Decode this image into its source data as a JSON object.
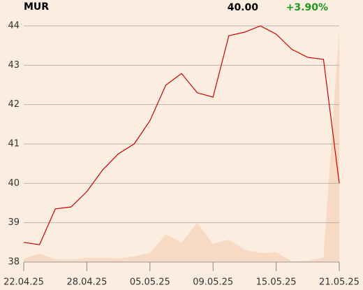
{
  "chart_data": {
    "type": "line",
    "title": "MUR",
    "last": "40.00",
    "change": "+3.90%",
    "change_color": "#1a9a1a",
    "categories": [
      "22.04.25",
      null,
      null,
      null,
      "28.04.25",
      null,
      null,
      null,
      "05.05.25",
      null,
      null,
      null,
      "09.05.25",
      null,
      null,
      null,
      "15.05.25",
      null,
      null,
      null,
      "21.05.25"
    ],
    "series": [
      {
        "color": "#cc0000",
        "values": [
          38.5,
          38.44,
          39.35,
          39.4,
          39.79,
          40.34,
          40.75,
          41.0,
          41.59,
          42.49,
          42.79,
          42.3,
          42.19,
          43.75,
          43.84,
          44.0,
          43.79,
          43.4,
          43.2,
          43.15,
          40.0
        ]
      }
    ],
    "volume": {
      "color": "#f8d9c3",
      "axis": "y2",
      "values": [
        1.5,
        3.5,
        1.2,
        1,
        1.8,
        1.8,
        1.5,
        2.4,
        3.8,
        11.8,
        8.3,
        16.6,
        7.7,
        9.5,
        5.3,
        3.8,
        4.1,
        0.3,
        0.6,
        1.8,
        99
      ]
    },
    "y2lim": [
      0,
      100
    ],
    "ylim": [
      38,
      44
    ],
    "yticks": [
      38,
      39,
      40,
      41,
      42,
      43,
      44
    ],
    "grid": true
  }
}
